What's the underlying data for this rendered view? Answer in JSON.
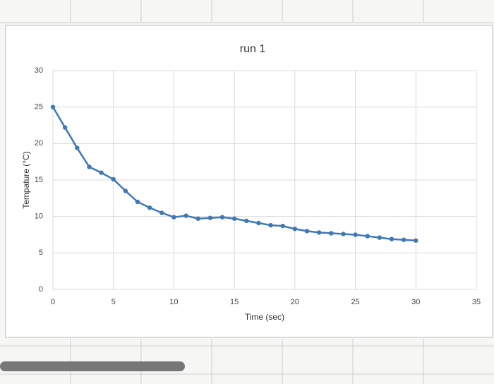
{
  "chart_data": {
    "type": "line",
    "title": "run 1",
    "x_label": "Time (sec)",
    "y_label": "Tempature (°C)",
    "x": [
      0,
      1,
      2,
      3,
      4,
      5,
      6,
      7,
      8,
      9,
      10,
      11,
      12,
      13,
      14,
      15,
      16,
      17,
      18,
      19,
      20,
      21,
      22,
      23,
      24,
      25,
      26,
      27,
      28,
      29,
      30
    ],
    "series": [
      {
        "color": "#3f78b5",
        "values": [
          25,
          22.2,
          19.4,
          16.8,
          16,
          15.1,
          13.5,
          12,
          11.2,
          10.5,
          9.9,
          10.1,
          9.7,
          9.8,
          9.9,
          9.7,
          9.4,
          9.1,
          8.8,
          8.7,
          8.3,
          8,
          7.8,
          7.7,
          7.6,
          7.5,
          7.3,
          7.1,
          6.9,
          6.8,
          6.7
        ]
      }
    ],
    "xlim": [
      0,
      35
    ],
    "xticks": [
      0,
      5,
      10,
      15,
      20,
      25,
      30,
      35
    ],
    "ylim": [
      0,
      30
    ],
    "yticks": [
      0,
      5,
      10,
      15,
      20,
      25,
      30
    ],
    "grid": true
  }
}
